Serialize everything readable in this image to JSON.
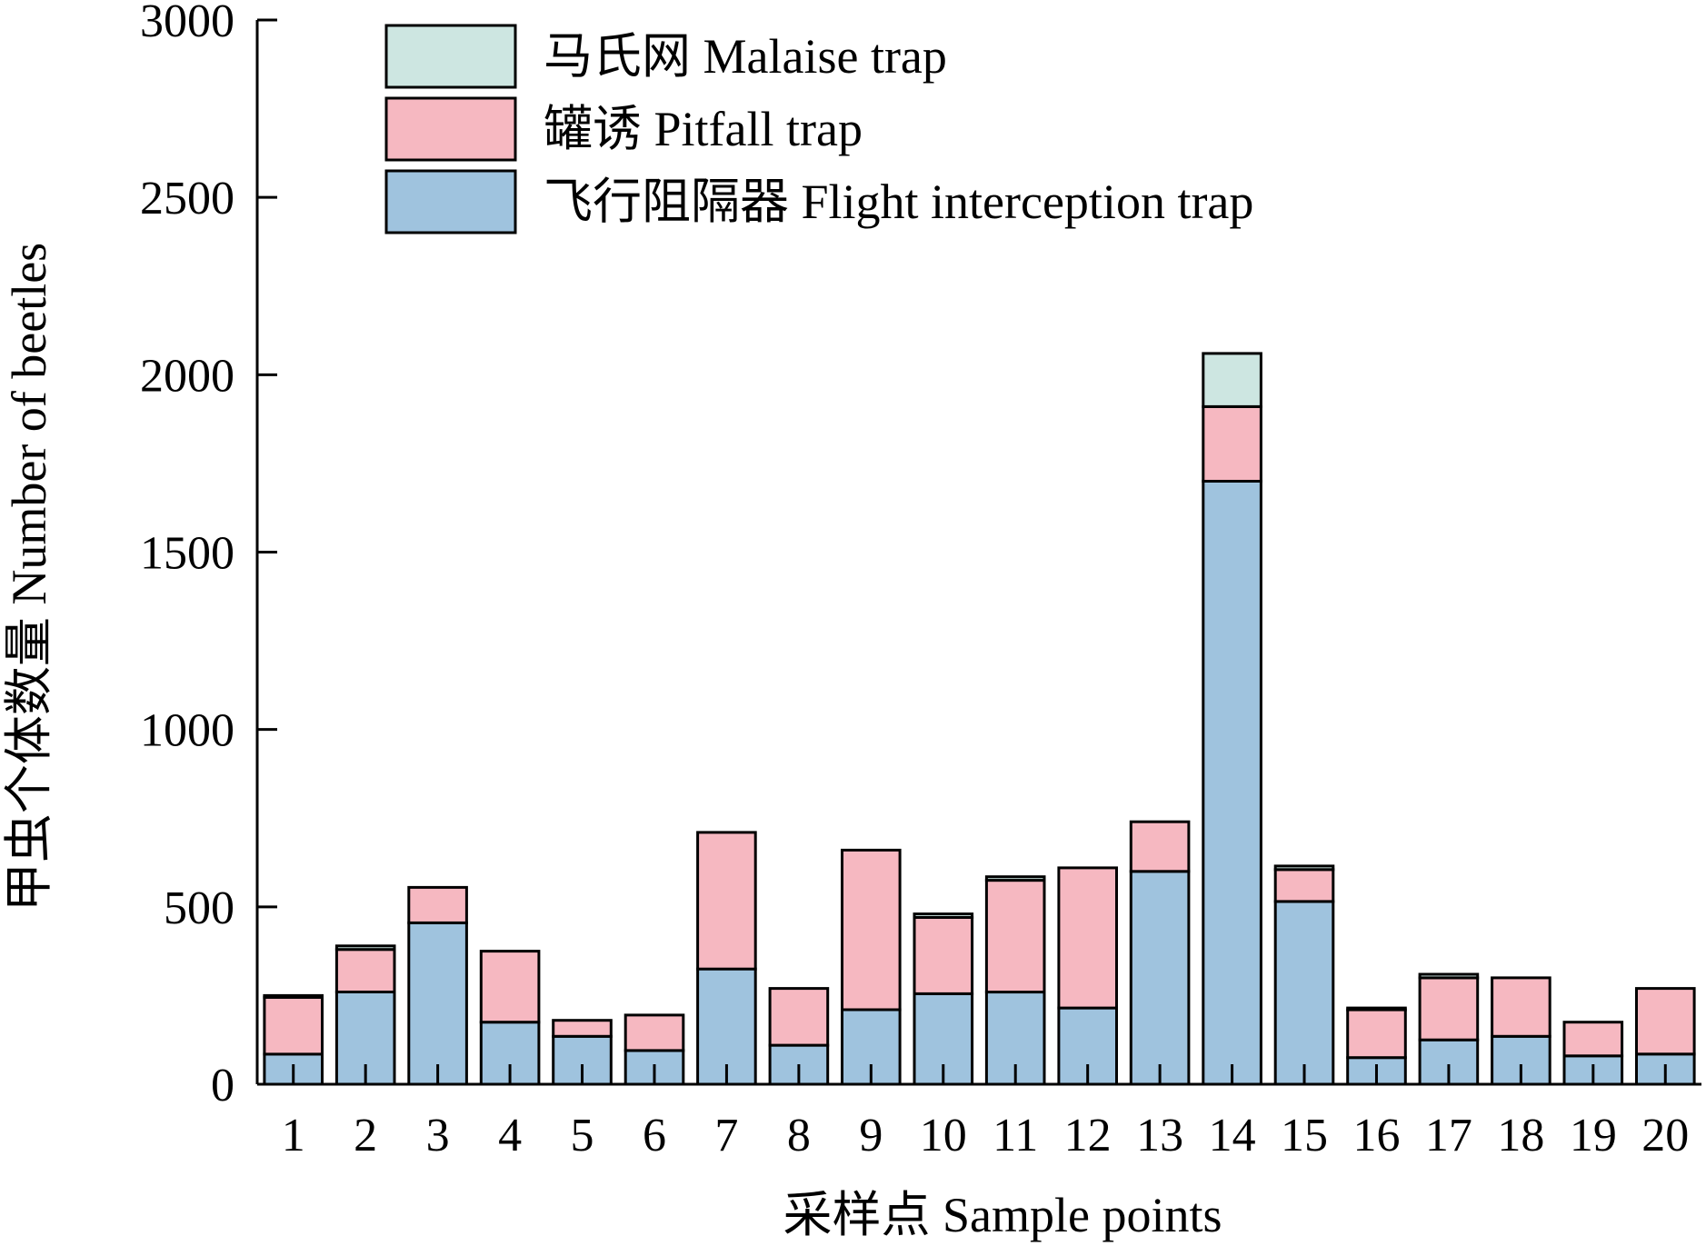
{
  "colors": {
    "malaise": "#cde6e1",
    "pitfall": "#f6b8c1",
    "flight": "#9fc3de",
    "stroke": "#000000"
  },
  "chart_data": {
    "type": "bar",
    "stacked": true,
    "xlabel": "采样点 Sample points",
    "ylabel": "甲虫个体数量 Number of beetles",
    "ylim": [
      0,
      3000
    ],
    "yticks": [
      0,
      500,
      1000,
      1500,
      2000,
      2500,
      3000
    ],
    "legend_position": "top-left",
    "grid": false,
    "categories": [
      "1",
      "2",
      "3",
      "4",
      "5",
      "6",
      "7",
      "8",
      "9",
      "10",
      "11",
      "12",
      "13",
      "14",
      "15",
      "16",
      "17",
      "18",
      "19",
      "20"
    ],
    "series": [
      {
        "name": "飞行阻隔器 Flight interception trap",
        "color": "#9fc3de",
        "values": [
          85,
          260,
          455,
          175,
          135,
          95,
          325,
          110,
          210,
          255,
          260,
          215,
          600,
          1700,
          515,
          75,
          125,
          135,
          80,
          85
        ]
      },
      {
        "name": "罐诱 Pitfall trap",
        "color": "#f6b8c1",
        "values": [
          160,
          120,
          100,
          200,
          45,
          100,
          385,
          160,
          450,
          215,
          315,
          395,
          140,
          210,
          90,
          135,
          175,
          165,
          95,
          185
        ]
      },
      {
        "name": "马氏网 Malaise trap",
        "color": "#cde6e1",
        "values": [
          5,
          10,
          0,
          0,
          0,
          0,
          0,
          0,
          0,
          10,
          10,
          0,
          0,
          150,
          10,
          5,
          10,
          0,
          0,
          0
        ]
      }
    ]
  }
}
